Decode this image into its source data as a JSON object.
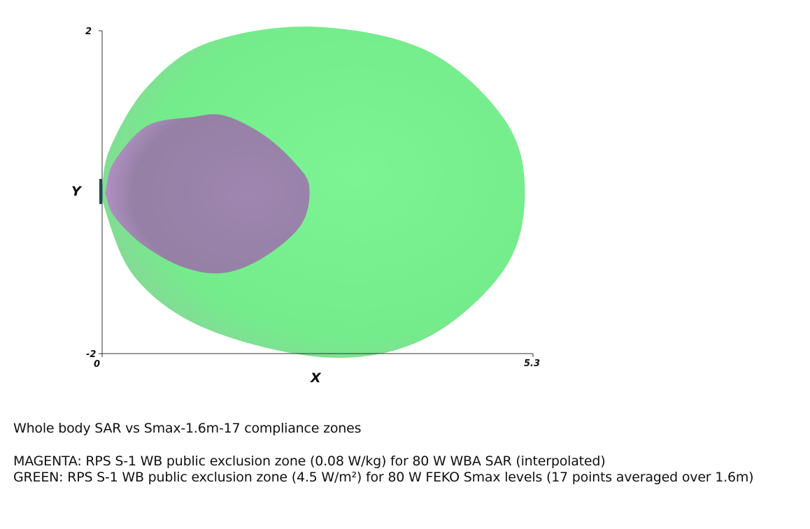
{
  "chart_data": {
    "type": "area",
    "x_axis": {
      "label": "X",
      "range": [
        0,
        5.3
      ],
      "tick_labels": [
        "0",
        "5.3"
      ]
    },
    "y_axis": {
      "label": "Y",
      "range": [
        -2,
        2
      ],
      "tick_labels": [
        "2",
        "-2"
      ]
    },
    "grid": false,
    "series": [
      {
        "color": "#78f08e",
        "outline": [
          [
            0,
            0.05
          ],
          [
            0.1,
            0.55
          ],
          [
            0.55,
            1.3
          ],
          [
            1.3,
            1.85
          ],
          [
            2.6,
            2.05
          ],
          [
            4.0,
            1.75
          ],
          [
            4.95,
            0.9
          ],
          [
            5.2,
            0.0
          ],
          [
            4.95,
            -0.95
          ],
          [
            4.0,
            -1.8
          ],
          [
            2.8,
            -2.05
          ],
          [
            1.3,
            -1.7
          ],
          [
            0.4,
            -1.05
          ],
          [
            0,
            -0.1
          ]
        ]
      },
      {
        "color": "#9e7fb0",
        "outline": [
          [
            0.05,
            0.05
          ],
          [
            0.15,
            0.38
          ],
          [
            0.55,
            0.82
          ],
          [
            1.1,
            0.93
          ],
          [
            1.5,
            0.95
          ],
          [
            2.0,
            0.7
          ],
          [
            2.4,
            0.33
          ],
          [
            2.55,
            0.05
          ],
          [
            2.45,
            -0.4
          ],
          [
            2.0,
            -0.8
          ],
          [
            1.5,
            -1.0
          ],
          [
            1.0,
            -0.93
          ],
          [
            0.5,
            -0.65
          ],
          [
            0.15,
            -0.3
          ],
          [
            0.05,
            -0.05
          ]
        ]
      }
    ]
  },
  "captions": {
    "title": "Whole body SAR vs Smax-1.6m-17 compliance zones",
    "magenta": "MAGENTA: RPS S-1 WB public exclusion zone (0.08 W/kg) for 80 W WBA SAR (interpolated)",
    "green": "GREEN: RPS S-1 WB public exclusion zone (4.5 W/m²) for 80 W FEKO Smax levels (17 points averaged over 1.6m)"
  }
}
